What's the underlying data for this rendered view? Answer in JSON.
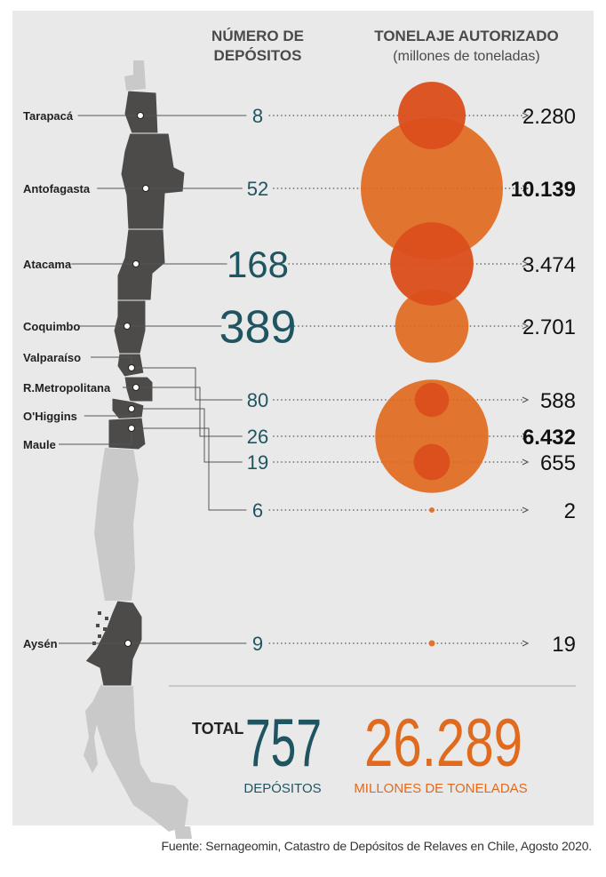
{
  "header": {
    "deposits_line1": "NÚMERO DE",
    "deposits_line2": "DEPÓSITOS",
    "tonnage_line1": "TONELAJE AUTORIZADO",
    "tonnage_line2": "(millones de toneladas)"
  },
  "total": {
    "label": "TOTAL",
    "deposits_value": "757",
    "deposits_label": "DEPÓSITOS",
    "tonnage_value": "26.289",
    "tonnage_label": "MILLONES DE TONELADAS"
  },
  "source": "Fuente: Sernageomin, Catastro de Depósitos de Relaves en Chile, Agosto 2020.",
  "colors": {
    "deposits": "#1f5560",
    "tonnage": "#e06a1e",
    "overlap": "#d93a1e",
    "region_dark": "#4d4b4a",
    "region_light": "#c9c9c9",
    "background": "#e9e9e9"
  },
  "chart_data": {
    "type": "bubble",
    "series": [
      {
        "name": "NÚMERO DE DEPÓSITOS",
        "values": [
          8,
          52,
          168,
          389,
          80,
          26,
          19,
          6,
          9
        ]
      },
      {
        "name": "TONELAJE AUTORIZADO (millones de toneladas)",
        "values": [
          2280,
          10139,
          3474,
          2701,
          588,
          6432,
          655,
          2,
          19
        ]
      }
    ],
    "categories": [
      "Tarapacá",
      "Antofagasta",
      "Atacama",
      "Coquimbo",
      "Valparaíso",
      "R.Metropolitana",
      "O'Higgins",
      "Maule",
      "Aysén"
    ],
    "regions": [
      {
        "name": "Tarapacá",
        "deposits": 8,
        "deposits_label": "8",
        "tonnage": 2280,
        "tonnage_label": "2.280",
        "highlight": false
      },
      {
        "name": "Antofagasta",
        "deposits": 52,
        "deposits_label": "52",
        "tonnage": 10139,
        "tonnage_label": "10.139",
        "highlight": true
      },
      {
        "name": "Atacama",
        "deposits": 168,
        "deposits_label": "168",
        "tonnage": 3474,
        "tonnage_label": "3.474",
        "highlight": false
      },
      {
        "name": "Coquimbo",
        "deposits": 389,
        "deposits_label": "389",
        "tonnage": 2701,
        "tonnage_label": "2.701",
        "highlight": false
      },
      {
        "name": "Valparaíso",
        "deposits": 80,
        "deposits_label": "80",
        "tonnage": 588,
        "tonnage_label": "588",
        "highlight": false
      },
      {
        "name": "R.Metropolitana",
        "deposits": 26,
        "deposits_label": "26",
        "tonnage": 6432,
        "tonnage_label": "6.432",
        "highlight": true
      },
      {
        "name": "O'Higgins",
        "deposits": 19,
        "deposits_label": "19",
        "tonnage": 655,
        "tonnage_label": "655",
        "highlight": false
      },
      {
        "name": "Maule",
        "deposits": 6,
        "deposits_label": "6",
        "tonnage": 2,
        "tonnage_label": "2",
        "highlight": false
      },
      {
        "name": "Aysén",
        "deposits": 9,
        "deposits_label": "9",
        "tonnage": 19,
        "tonnage_label": "19",
        "highlight": false
      }
    ]
  }
}
